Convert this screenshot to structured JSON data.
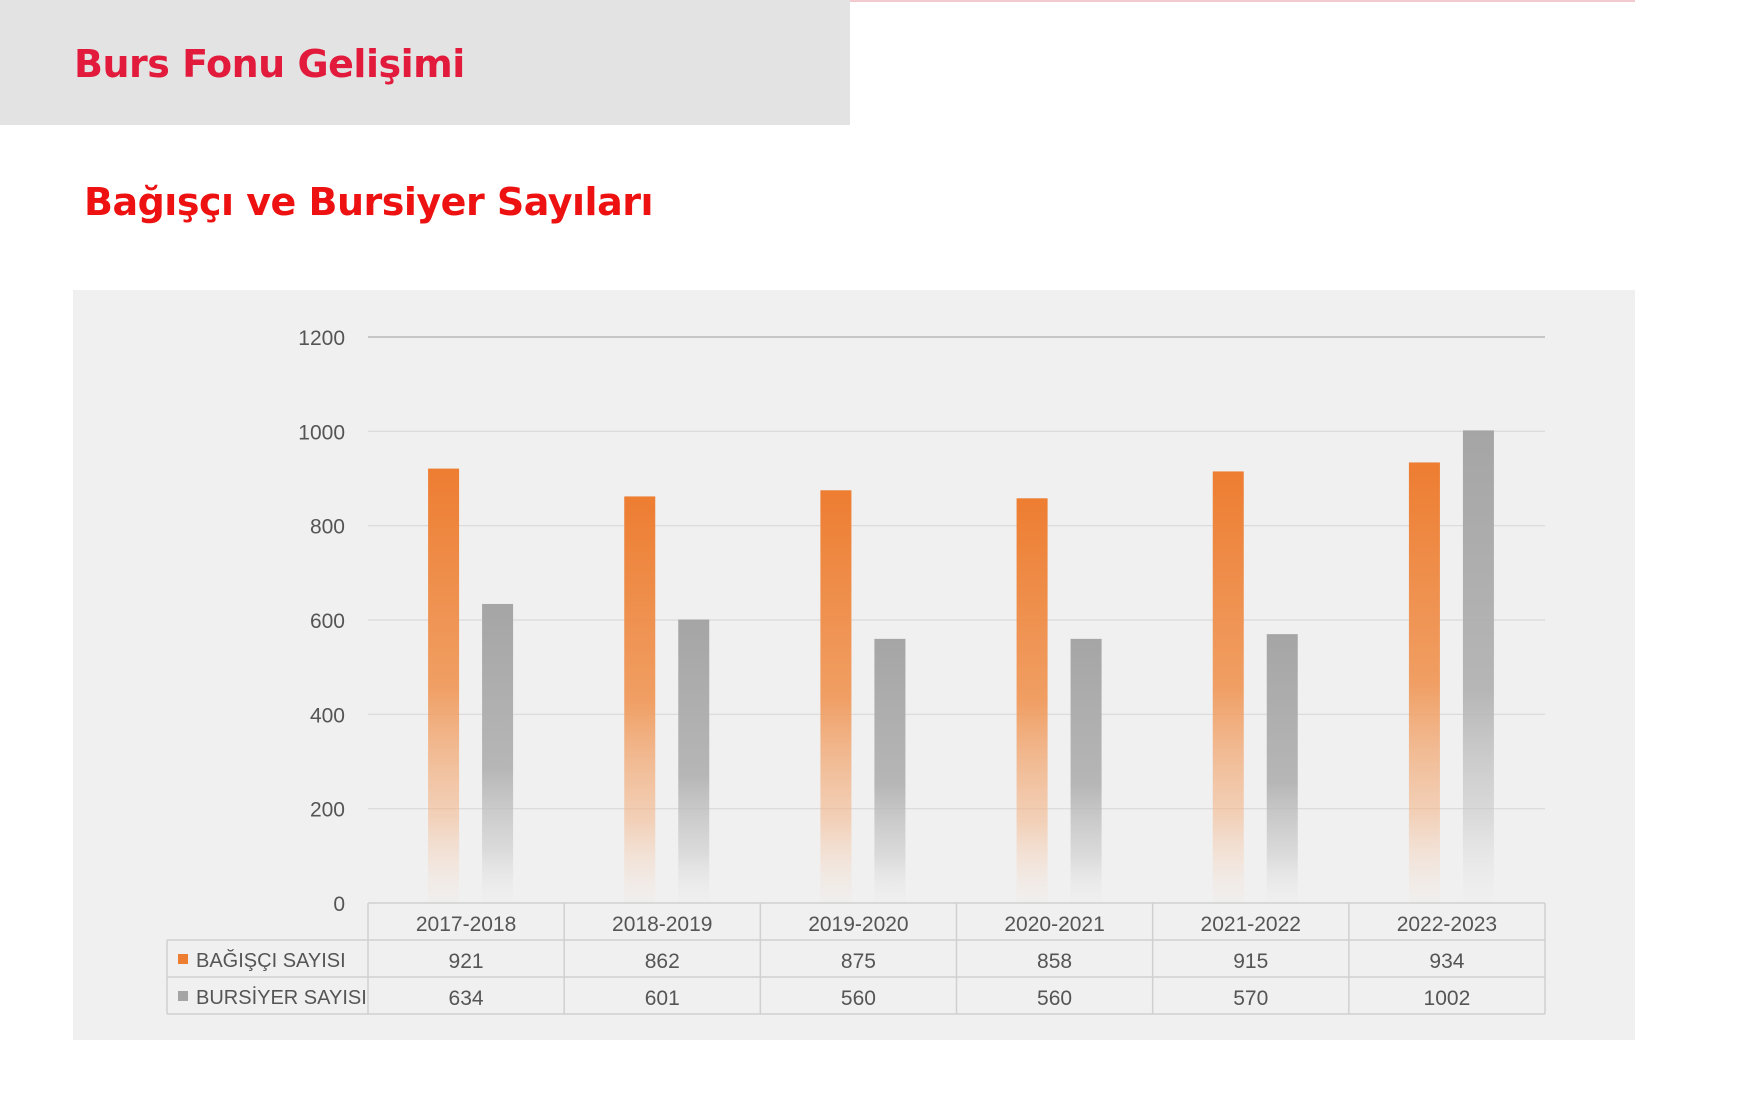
{
  "header": {
    "title": "Burs Fonu Gelişimi"
  },
  "section": {
    "title": "Bağışçı ve Bursiyer Sayıları"
  },
  "colors": {
    "header_title": "#e21a3b",
    "section_title": "#ee1111",
    "bagisci": "#ed7d31",
    "bursiyer": "#a5a5a5"
  },
  "chart_data": {
    "type": "bar",
    "categories": [
      "2017-2018",
      "2018-2019",
      "2019-2020",
      "2020-2021",
      "2021-2022",
      "2022-2023"
    ],
    "series": [
      {
        "name": "BAĞIŞÇI SAYISI",
        "values": [
          921,
          862,
          875,
          858,
          915,
          934
        ],
        "color": "#ed7d31"
      },
      {
        "name": "BURSİYER SAYISI",
        "values": [
          634,
          601,
          560,
          560,
          570,
          1002
        ],
        "color": "#a5a5a5"
      }
    ],
    "ylim": [
      0,
      1200
    ],
    "yticks": [
      0,
      200,
      400,
      600,
      800,
      1000,
      1200
    ],
    "grid": true,
    "data_table": true
  }
}
